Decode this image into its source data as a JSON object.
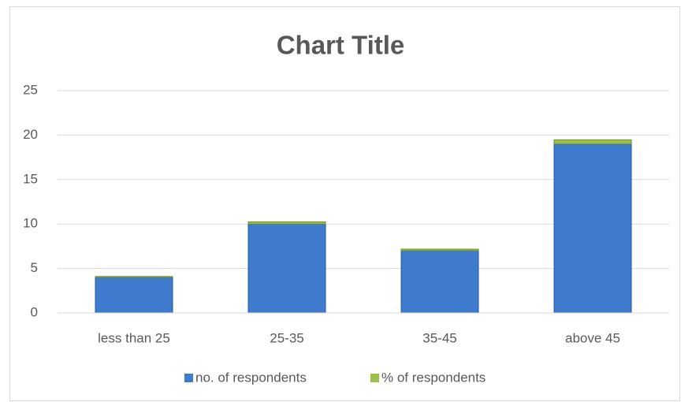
{
  "chart_data": {
    "type": "stacked_bar",
    "title": "Chart Title",
    "categories": [
      "less than 25",
      "25-35",
      "35-45",
      "above 45"
    ],
    "series": [
      {
        "name": "no. of respondents",
        "color": "#3f7bcc",
        "values": [
          4,
          10,
          7,
          19
        ]
      },
      {
        "name": "% of respondents",
        "color": "#9bc14a",
        "values": [
          0.1,
          0.25,
          0.175,
          0.475
        ]
      }
    ],
    "ylim": [
      0,
      25
    ],
    "yticks": [
      0,
      5,
      10,
      15,
      20,
      25
    ],
    "grid": true,
    "legend": "bottom"
  }
}
